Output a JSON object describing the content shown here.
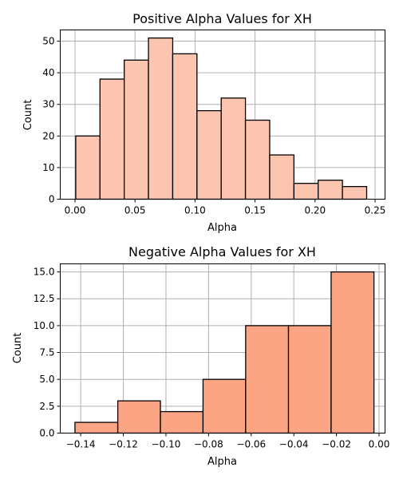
{
  "chart_data": [
    {
      "type": "bar",
      "title": "Positive Alpha Values for XH",
      "xlabel": "Alpha",
      "ylabel": "Count",
      "xlim": [
        -0.0123,
        0.2583
      ],
      "ylim": [
        0,
        53.55
      ],
      "xticks": [
        0.0,
        0.05,
        0.1,
        0.15,
        0.2,
        0.25
      ],
      "xtick_labels": [
        "0.00",
        "0.05",
        "0.10",
        "0.15",
        "0.20",
        "0.25"
      ],
      "yticks": [
        0,
        10,
        20,
        30,
        40,
        50
      ],
      "ytick_labels": [
        "0",
        "10",
        "20",
        "30",
        "40",
        "50"
      ],
      "bin_edges": [
        0.0006,
        0.0208,
        0.041,
        0.0612,
        0.0814,
        0.1016,
        0.1218,
        0.142,
        0.1622,
        0.1824,
        0.2026,
        0.2228,
        0.243
      ],
      "values": [
        20,
        38,
        44,
        51,
        46,
        28,
        32,
        25,
        14,
        5,
        6,
        4
      ],
      "bar_color": "#fcc5b0",
      "edge_color": "#000000",
      "grid": true
    },
    {
      "type": "bar",
      "title": "Negative Alpha Values for XH",
      "xlabel": "Alpha",
      "ylabel": "Count",
      "xlim": [
        -0.1496,
        0.0028
      ],
      "ylim": [
        0,
        15.75
      ],
      "xticks": [
        -0.14,
        -0.12,
        -0.1,
        -0.08,
        -0.06,
        -0.04,
        -0.02,
        0.0
      ],
      "xtick_labels": [
        "−0.14",
        "−0.12",
        "−0.10",
        "−0.08",
        "−0.06",
        "−0.04",
        "−0.02",
        "0.00"
      ],
      "yticks": [
        0.0,
        2.5,
        5.0,
        7.5,
        10.0,
        12.5,
        15.0
      ],
      "ytick_labels": [
        "0.0",
        "2.5",
        "5.0",
        "7.5",
        "10.0",
        "12.5",
        "15.0"
      ],
      "bin_edges": [
        -0.1427,
        -0.1226,
        -0.1026,
        -0.0826,
        -0.0626,
        -0.0425,
        -0.0225,
        -0.0024
      ],
      "values": [
        1,
        3,
        2,
        5,
        10,
        10,
        15
      ],
      "bar_color": "#fca585",
      "edge_color": "#000000",
      "grid": true
    }
  ]
}
